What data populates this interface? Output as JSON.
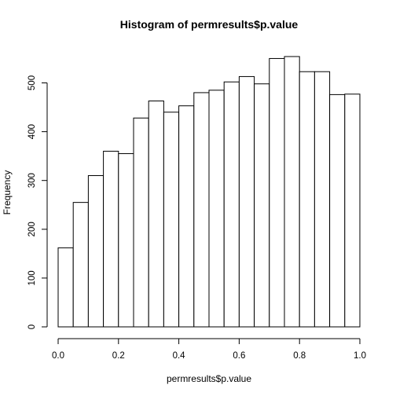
{
  "chart_data": {
    "type": "bar",
    "subtype": "histogram",
    "title": "Histogram of permresults$p.value",
    "xlabel": "permresults$p.value",
    "ylabel": "Frequency",
    "bin_edges": [
      0.0,
      0.05,
      0.1,
      0.15,
      0.2,
      0.25,
      0.3,
      0.35,
      0.4,
      0.45,
      0.5,
      0.55,
      0.6,
      0.65,
      0.7,
      0.75,
      0.8,
      0.85,
      0.9,
      0.95,
      1.0
    ],
    "values": [
      162,
      255,
      310,
      360,
      355,
      428,
      463,
      440,
      453,
      480,
      485,
      502,
      513,
      498,
      550,
      554,
      523,
      523,
      476,
      477
    ],
    "xlim": [
      0,
      1
    ],
    "ylim": [
      0,
      560
    ],
    "x_ticks": [
      0.0,
      0.2,
      0.4,
      0.6,
      0.8,
      1.0
    ],
    "x_tick_labels": [
      "0.0",
      "0.2",
      "0.4",
      "0.6",
      "0.8",
      "1.0"
    ],
    "y_ticks": [
      0,
      100,
      200,
      300,
      400,
      500
    ],
    "y_tick_labels": [
      "0",
      "100",
      "200",
      "300",
      "400",
      "500"
    ],
    "grid": false,
    "legend": "none",
    "bar_fill": "#ffffff",
    "bar_stroke": "#000000"
  }
}
